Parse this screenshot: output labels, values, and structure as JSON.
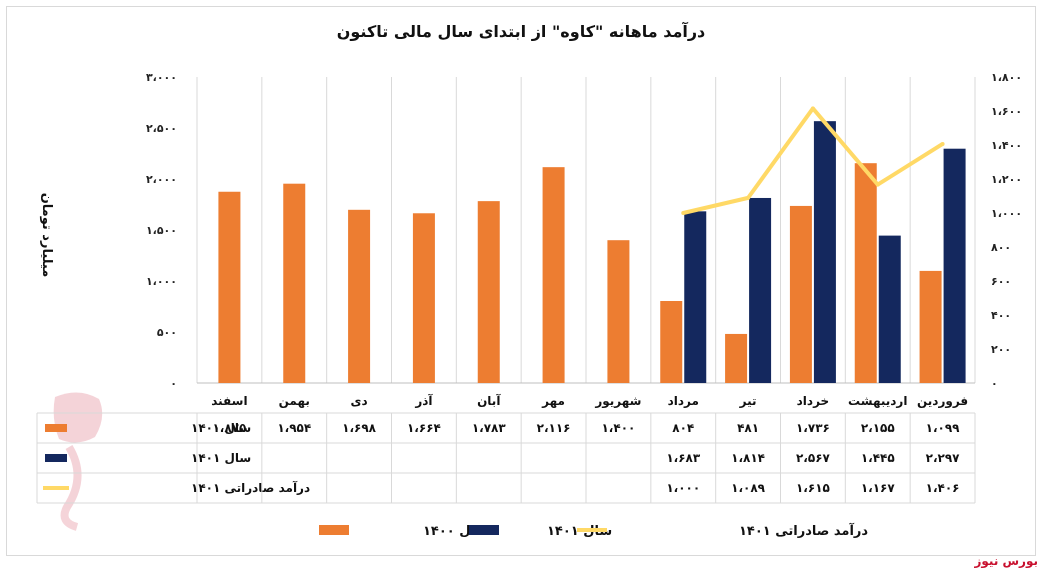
{
  "chart_data": {
    "type": "bar",
    "title": "درآمد ماهانه \"کاوه\" از ابتدای سال مالی تاکنون",
    "ylabel": "میلیارد تومان",
    "ylim": [
      0,
      3000
    ],
    "y_ticks": [
      "۰",
      "۵۰۰",
      "۱،۰۰۰",
      "۱،۵۰۰",
      "۲،۰۰۰",
      "۲،۵۰۰",
      "۳،۰۰۰"
    ],
    "y2lim": [
      0,
      1800
    ],
    "y2_ticks": [
      "۰",
      "۲۰۰",
      "۴۰۰",
      "۶۰۰",
      "۸۰۰",
      "۱،۰۰۰",
      "۱،۲۰۰",
      "۱،۴۰۰",
      "۱،۶۰۰",
      "۱،۸۰۰"
    ],
    "categories": [
      "فروردین",
      "اردیبهشت",
      "خرداد",
      "تیر",
      "مرداد",
      "شهریور",
      "مهر",
      "آبان",
      "آذر",
      "دی",
      "بهمن",
      "اسفند"
    ],
    "series": [
      {
        "name": "سال ۱۴۰۰",
        "type": "bar",
        "axis": "left",
        "color": "#ed7d31",
        "values": [
          1099,
          2155,
          1736,
          481,
          804,
          1400,
          2116,
          1783,
          1664,
          1698,
          1954,
          1875
        ],
        "labels": [
          "۱،۰۹۹",
          "۲،۱۵۵",
          "۱،۷۳۶",
          "۴۸۱",
          "۸۰۴",
          "۱،۴۰۰",
          "۲،۱۱۶",
          "۱،۷۸۳",
          "۱،۶۶۴",
          "۱،۶۹۸",
          "۱،۹۵۴",
          "۱،۸۷۵"
        ]
      },
      {
        "name": "سال ۱۴۰۱",
        "type": "bar",
        "axis": "left",
        "color": "#14285e",
        "values": [
          2297,
          1445,
          2567,
          1814,
          1683,
          null,
          null,
          null,
          null,
          null,
          null,
          null
        ],
        "labels": [
          "۲،۲۹۷",
          "۱،۴۴۵",
          "۲،۵۶۷",
          "۱،۸۱۴",
          "۱،۶۸۳",
          "",
          "",
          "",
          "",
          "",
          "",
          ""
        ]
      },
      {
        "name": "درآمد صادراتی ۱۴۰۱",
        "type": "line",
        "axis": "right",
        "color": "#ffd966",
        "values": [
          1406,
          1167,
          1615,
          1089,
          1000,
          null,
          null,
          null,
          null,
          null,
          null,
          null
        ],
        "labels": [
          "۱،۴۰۶",
          "۱،۱۶۷",
          "۱،۶۱۵",
          "۱،۰۸۹",
          "۱،۰۰۰",
          "",
          "",
          "",
          "",
          "",
          "",
          ""
        ]
      }
    ],
    "legend_position": "bottom",
    "grid": "vertical",
    "data_table": true
  },
  "footer": {
    "brand": "بورس نیوز"
  },
  "colors": {
    "accent_red": "#c8102e",
    "grid": "#d9d9d9"
  }
}
